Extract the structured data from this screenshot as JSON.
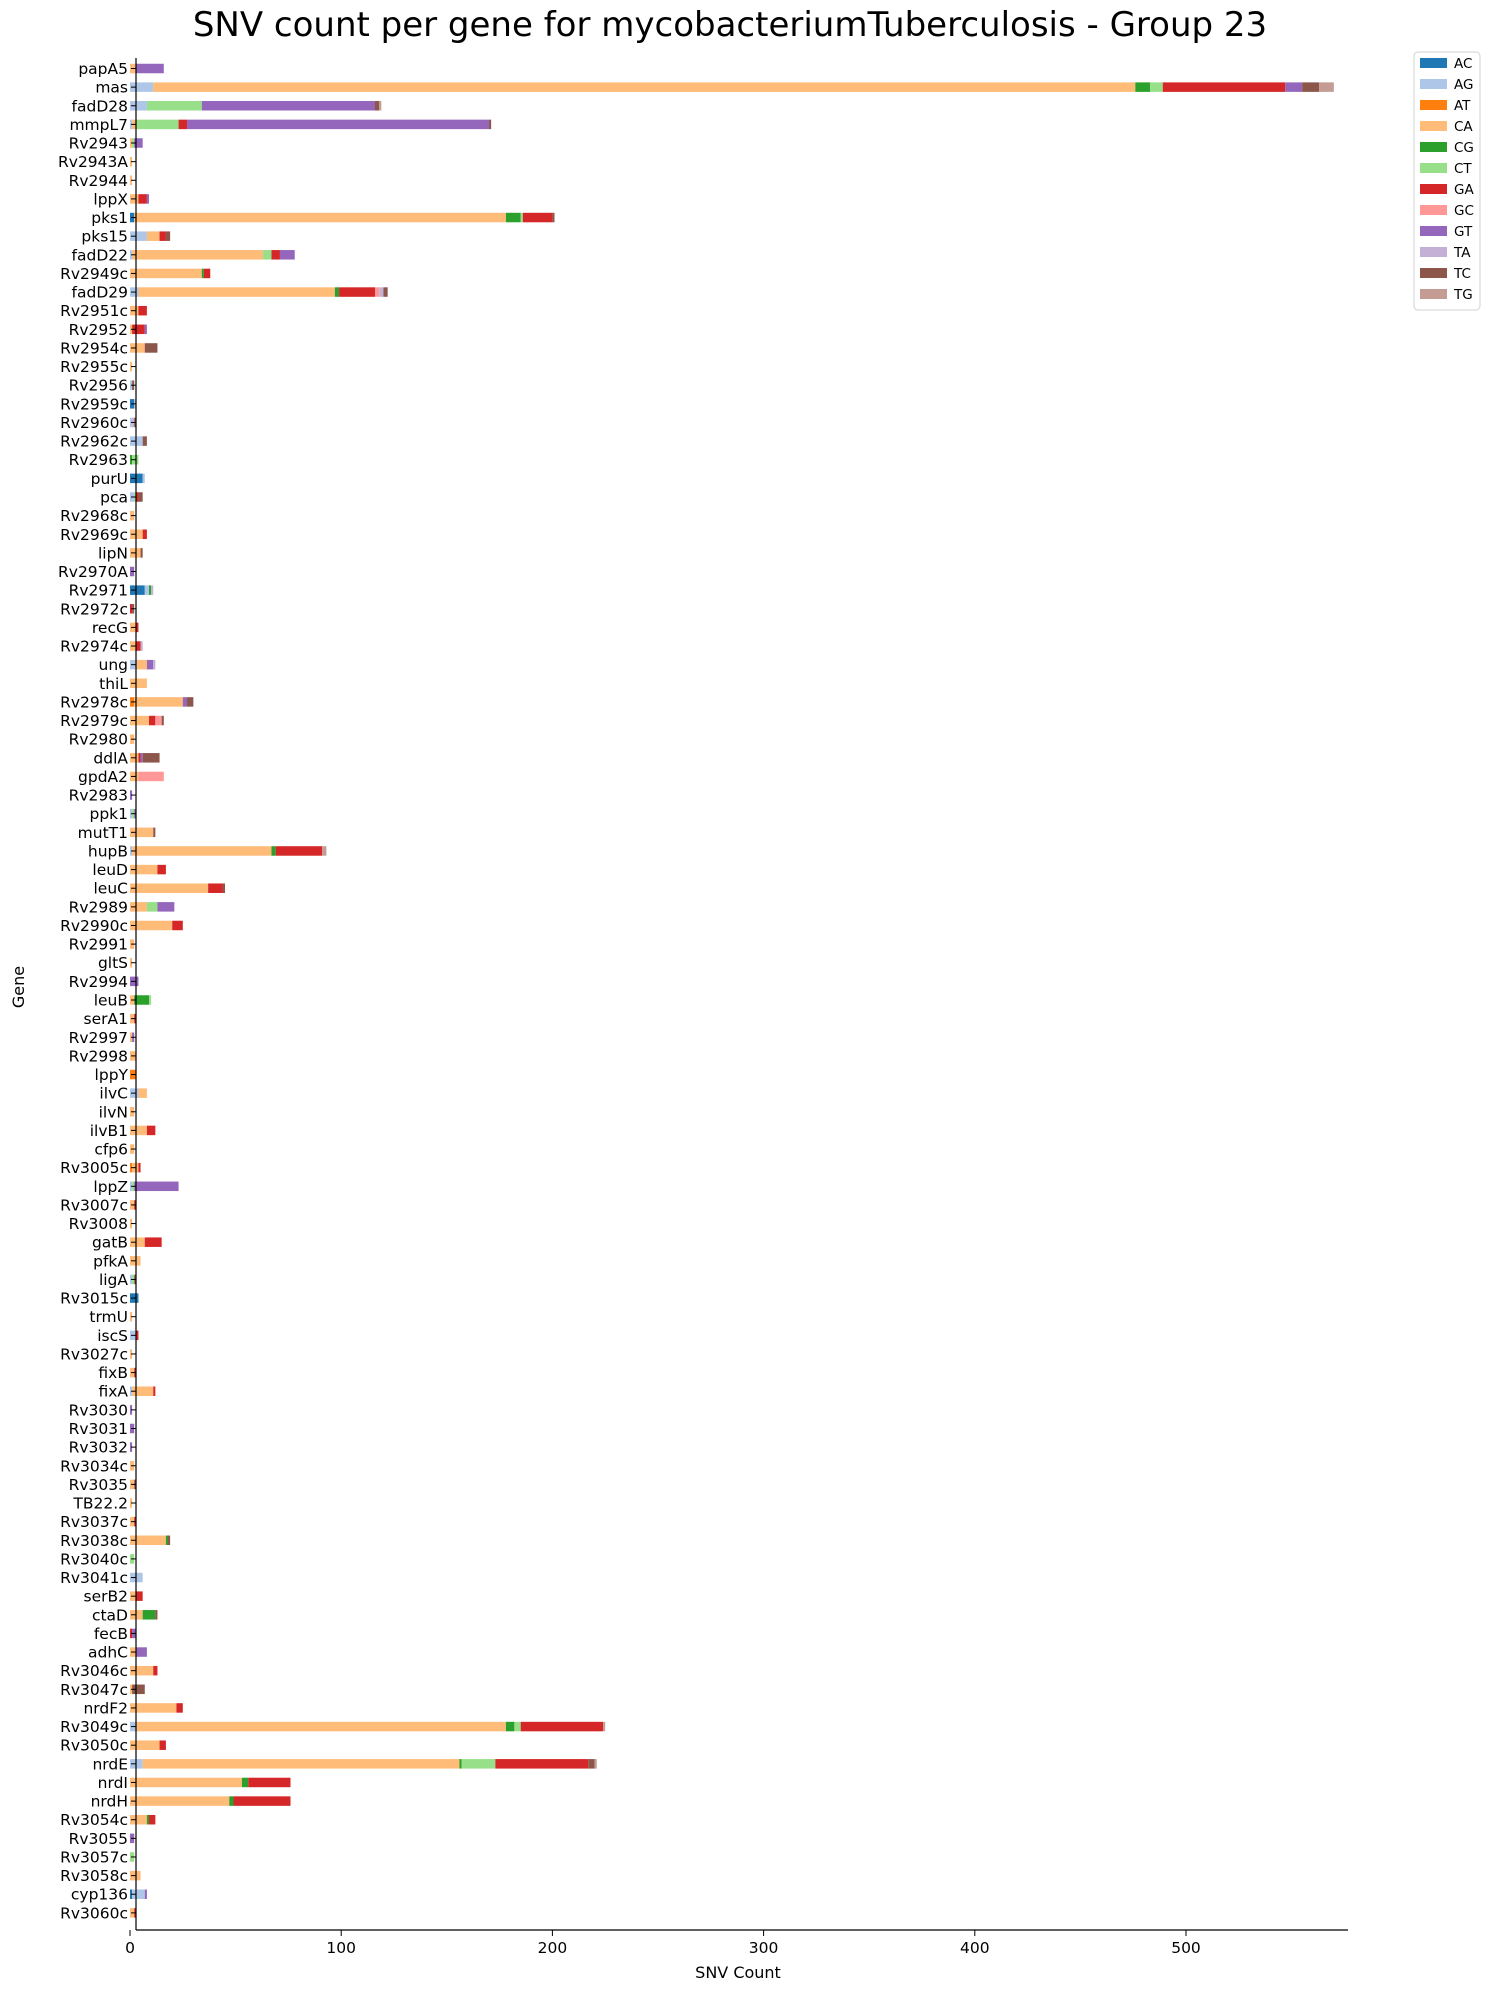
{
  "chart_data": {
    "type": "bar",
    "orientation": "horizontal",
    "stacked": true,
    "title": "SNV count per gene for mycobacteriumTuberculosis - Group 23",
    "xlabel": "SNV Count",
    "ylabel": "Gene",
    "xlim": [
      0,
      577
    ],
    "xticks": [
      0,
      100,
      200,
      300,
      400,
      500
    ],
    "grid": false,
    "legend_position": "outside-top-right",
    "substitutions": [
      "AC",
      "AG",
      "AT",
      "CA",
      "CG",
      "CT",
      "GA",
      "GC",
      "GT",
      "TA",
      "TC",
      "TG"
    ],
    "colors": {
      "AC": "#1f77b4",
      "AG": "#aec7e8",
      "AT": "#ff7f0e",
      "CA": "#ffbb78",
      "CG": "#2ca02c",
      "CT": "#98df8a",
      "GA": "#d62728",
      "GC": "#ff9896",
      "GT": "#9467bd",
      "TA": "#c5b0d5",
      "TC": "#8c564b",
      "TG": "#c49c94"
    },
    "genes": [
      {
        "name": "papA5",
        "v": {
          "CA": 3,
          "GT": 13
        }
      },
      {
        "name": "mas",
        "v": {
          "AG": 11,
          "CA": 465,
          "CG": 7,
          "CT": 6,
          "GA": 58,
          "GT": 8,
          "TC": 8,
          "TG": 7
        }
      },
      {
        "name": "fadD28",
        "v": {
          "AG": 8,
          "CT": 26,
          "GT": 82,
          "TC": 2,
          "TG": 1
        }
      },
      {
        "name": "mmpL7",
        "v": {
          "AG": 1,
          "CA": 2,
          "CT": 20,
          "GA": 4,
          "GT": 143,
          "TC": 1
        }
      },
      {
        "name": "Rv2943",
        "v": {
          "CA": 1,
          "CT": 1,
          "GT": 4
        }
      },
      {
        "name": "Rv2943A",
        "v": {
          "CA": 1
        }
      },
      {
        "name": "Rv2944",
        "v": {
          "CA": 1
        }
      },
      {
        "name": "lppX",
        "v": {
          "CA": 4,
          "GA": 4,
          "GT": 1
        }
      },
      {
        "name": "pks1",
        "v": {
          "AC": 2,
          "CA": 176,
          "CG": 7,
          "CT": 1,
          "GA": 14,
          "TC": 1
        }
      },
      {
        "name": "pks15",
        "v": {
          "AG": 8,
          "CA": 6,
          "GA": 3,
          "TC": 2
        }
      },
      {
        "name": "fadD22",
        "v": {
          "AG": 1,
          "CA": 62,
          "CT": 4,
          "GA": 4,
          "GT": 7
        }
      },
      {
        "name": "Rv2949c",
        "v": {
          "CA": 34,
          "CG": 1,
          "GA": 3
        }
      },
      {
        "name": "fadD29",
        "v": {
          "AG": 4,
          "CA": 93,
          "CG": 2,
          "GA": 17,
          "GC": 2,
          "TA": 2,
          "TC": 2
        }
      },
      {
        "name": "Rv2951c",
        "v": {
          "CA": 4,
          "GA": 4
        }
      },
      {
        "name": "Rv2952",
        "v": {
          "CA": 1,
          "GA": 6,
          "GT": 1
        }
      },
      {
        "name": "Rv2954c",
        "v": {
          "CA": 7,
          "TC": 6
        }
      },
      {
        "name": "Rv2955c",
        "v": {
          "CA": 1
        }
      },
      {
        "name": "Rv2956",
        "v": {
          "AG": 1,
          "TC": 1
        }
      },
      {
        "name": "Rv2959c",
        "v": {
          "AC": 2,
          "AG": 1
        }
      },
      {
        "name": "Rv2960c",
        "v": {
          "AG": 1,
          "TA": 1,
          "TC": 1
        }
      },
      {
        "name": "Rv2962c",
        "v": {
          "AG": 6,
          "TC": 2
        }
      },
      {
        "name": "Rv2963",
        "v": {
          "CT": 3,
          "CG": 1
        }
      },
      {
        "name": "purU",
        "v": {
          "AC": 6,
          "AG": 1
        }
      },
      {
        "name": "pca",
        "v": {
          "AG": 2,
          "CT": 1,
          "GA": 1,
          "TC": 2
        }
      },
      {
        "name": "Rv2968c",
        "v": {
          "CA": 2
        }
      },
      {
        "name": "Rv2969c",
        "v": {
          "CA": 6,
          "GA": 2
        }
      },
      {
        "name": "lipN",
        "v": {
          "CA": 5,
          "TC": 1
        }
      },
      {
        "name": "Rv2970A",
        "v": {
          "GT": 2
        }
      },
      {
        "name": "Rv2971",
        "v": {
          "AC": 7,
          "AG": 2,
          "CG": 1,
          "TA": 1
        }
      },
      {
        "name": "Rv2972c",
        "v": {
          "GA": 1,
          "TC": 1
        }
      },
      {
        "name": "recG",
        "v": {
          "CA": 3,
          "GA": 1
        }
      },
      {
        "name": "Rv2974c",
        "v": {
          "CA": 3,
          "GA": 2,
          "TA": 1
        }
      },
      {
        "name": "ung",
        "v": {
          "AG": 3,
          "CA": 5,
          "GT": 3,
          "TA": 1
        }
      },
      {
        "name": "thiL",
        "v": {
          "CA": 8
        }
      },
      {
        "name": "Rv2978c",
        "v": {
          "AT": 2,
          "CA": 23,
          "TC": 3,
          "GT": 2
        }
      },
      {
        "name": "Rv2979c",
        "v": {
          "CA": 9,
          "GA": 3,
          "GC": 3,
          "TC": 1
        }
      },
      {
        "name": "Rv2980",
        "v": {
          "CA": 2
        }
      },
      {
        "name": "ddlA",
        "v": {
          "CA": 4,
          "GA": 1,
          "GT": 1,
          "TC": 8
        }
      },
      {
        "name": "gpdA2",
        "v": {
          "CA": 4,
          "GC": 12
        }
      },
      {
        "name": "Rv2983",
        "v": {
          "GT": 1
        }
      },
      {
        "name": "ppk1",
        "v": {
          "AG": 1,
          "CT": 1,
          "GT": 1
        }
      },
      {
        "name": "mutT1",
        "v": {
          "CA": 11,
          "TC": 1
        }
      },
      {
        "name": "hupB",
        "v": {
          "AG": 1,
          "CA": 66,
          "CG": 2,
          "GA": 22,
          "TG": 2
        }
      },
      {
        "name": "leuD",
        "v": {
          "CA": 13,
          "GA": 4
        }
      },
      {
        "name": "leuC",
        "v": {
          "CA": 37,
          "GA": 7,
          "TC": 1
        }
      },
      {
        "name": "Rv2989",
        "v": {
          "CA": 8,
          "CT": 5,
          "GT": 8
        }
      },
      {
        "name": "Rv2990c",
        "v": {
          "CA": 20,
          "GA": 5
        }
      },
      {
        "name": "Rv2991",
        "v": {
          "CA": 2
        }
      },
      {
        "name": "gltS",
        "v": {
          "CA": 1
        }
      },
      {
        "name": "Rv2994",
        "v": {
          "GT": 4
        }
      },
      {
        "name": "leuB",
        "v": {
          "CA": 2,
          "CT": 1,
          "CG": 7
        }
      },
      {
        "name": "serA1",
        "v": {
          "CA": 2,
          "GA": 1
        }
      },
      {
        "name": "Rv2997",
        "v": {
          "CA": 1,
          "GT": 1
        }
      },
      {
        "name": "Rv2998",
        "v": {
          "CA": 3
        }
      },
      {
        "name": "lppY",
        "v": {
          "AT": 3
        }
      },
      {
        "name": "ilvC",
        "v": {
          "AG": 4,
          "CA": 4
        }
      },
      {
        "name": "ilvN",
        "v": {
          "CA": 2
        }
      },
      {
        "name": "ilvB1",
        "v": {
          "CA": 8,
          "GA": 4
        }
      },
      {
        "name": "cfp6",
        "v": {
          "CA": 2
        }
      },
      {
        "name": "Rv3005c",
        "v": {
          "AT": 1,
          "CA": 3,
          "GA": 1
        }
      },
      {
        "name": "lppZ",
        "v": {
          "AG": 1,
          "CT": 1,
          "GT": 21
        }
      },
      {
        "name": "Rv3007c",
        "v": {
          "CA": 2,
          "GA": 1
        }
      },
      {
        "name": "Rv3008",
        "v": {
          "CA": 1
        }
      },
      {
        "name": "gatB",
        "v": {
          "CA": 7,
          "GA": 8
        }
      },
      {
        "name": "pfkA",
        "v": {
          "CA": 5
        }
      },
      {
        "name": "ligA",
        "v": {
          "AG": 1,
          "CT": 1,
          "TC": 1
        }
      },
      {
        "name": "Rv3015c",
        "v": {
          "AC": 4
        }
      },
      {
        "name": "trmU",
        "v": {
          "CA": 1
        }
      },
      {
        "name": "iscS",
        "v": {
          "AG": 3,
          "GA": 1
        }
      },
      {
        "name": "Rv3027c",
        "v": {
          "CA": 1
        }
      },
      {
        "name": "fixB",
        "v": {
          "CA": 2,
          "GA": 1
        }
      },
      {
        "name": "fixA",
        "v": {
          "AG": 1,
          "CA": 10,
          "GA": 1
        }
      },
      {
        "name": "Rv3030",
        "v": {
          "GT": 1
        }
      },
      {
        "name": "Rv3031",
        "v": {
          "GT": 2
        }
      },
      {
        "name": "Rv3032",
        "v": {
          "GT": 1
        }
      },
      {
        "name": "Rv3034c",
        "v": {
          "CA": 2
        }
      },
      {
        "name": "Rv3035",
        "v": {
          "CA": 2,
          "TC": 1
        }
      },
      {
        "name": "TB22.2",
        "v": {
          "CA": 1
        }
      },
      {
        "name": "Rv3037c",
        "v": {
          "CA": 2,
          "GA": 1
        }
      },
      {
        "name": "Rv3038c",
        "v": {
          "CA": 17,
          "CG": 1,
          "TC": 1
        }
      },
      {
        "name": "Rv3040c",
        "v": {
          "CT": 2
        }
      },
      {
        "name": "Rv3041c",
        "v": {
          "AG": 6
        }
      },
      {
        "name": "serB2",
        "v": {
          "CA": 3,
          "GA": 3
        }
      },
      {
        "name": "ctaD",
        "v": {
          "CA": 6,
          "CG": 6,
          "TC": 1
        }
      },
      {
        "name": "fecB",
        "v": {
          "GT": 2,
          "GA": 1
        }
      },
      {
        "name": "adhC",
        "v": {
          "CA": 3,
          "GT": 5
        }
      },
      {
        "name": "Rv3046c",
        "v": {
          "CA": 11,
          "GA": 2
        }
      },
      {
        "name": "Rv3047c",
        "v": {
          "CA": 1,
          "TC": 6
        }
      },
      {
        "name": "nrdF2",
        "v": {
          "CA": 22,
          "GA": 3
        }
      },
      {
        "name": "Rv3049c",
        "v": {
          "AG": 3,
          "CA": 175,
          "CG": 4,
          "CT": 3,
          "GA": 39,
          "TG": 1
        }
      },
      {
        "name": "Rv3050c",
        "v": {
          "CA": 14,
          "GA": 3
        }
      },
      {
        "name": "nrdE",
        "v": {
          "AG": 6,
          "CA": 150,
          "CG": 1,
          "CT": 16,
          "GA": 44,
          "TC": 3,
          "TG": 1
        }
      },
      {
        "name": "nrdI",
        "v": {
          "CA": 53,
          "CG": 3,
          "GA": 20
        }
      },
      {
        "name": "nrdH",
        "v": {
          "CA": 47,
          "CG": 2,
          "GA": 27
        }
      },
      {
        "name": "Rv3054c",
        "v": {
          "CA": 8,
          "CG": 1,
          "GA": 3
        }
      },
      {
        "name": "Rv3055",
        "v": {
          "GT": 2
        }
      },
      {
        "name": "Rv3057c",
        "v": {
          "CT": 2
        }
      },
      {
        "name": "Rv3058c",
        "v": {
          "CA": 5
        }
      },
      {
        "name": "cyp136",
        "v": {
          "AC": 1,
          "AG": 6,
          "GT": 1
        }
      },
      {
        "name": "Rv3060c",
        "v": {
          "CA": 2,
          "GA": 1
        }
      }
    ]
  }
}
